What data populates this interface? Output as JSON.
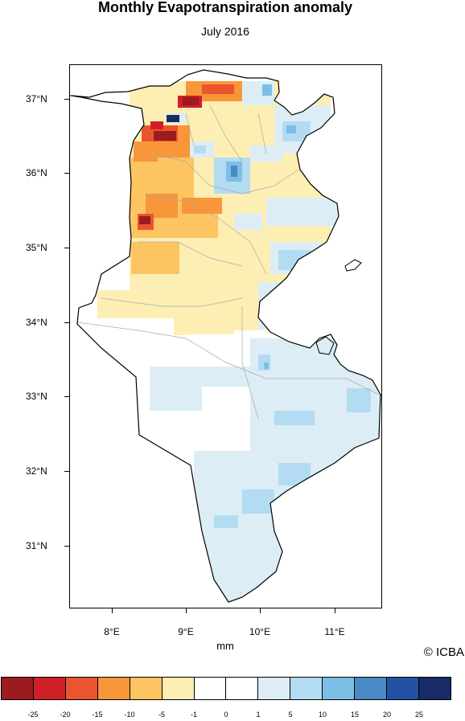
{
  "header": {
    "title": "Monthly Evapotranspiration anomaly",
    "subtitle": "July 2016"
  },
  "axes": {
    "lat_labels": [
      "37°N",
      "36°N",
      "35°N",
      "34°N",
      "33°N",
      "32°N",
      "31°N"
    ],
    "lon_labels": [
      "8°E",
      "9°E",
      "10°E",
      "11°E"
    ]
  },
  "units_label": "mm",
  "credit": "© ICBA",
  "legend": {
    "labels": [
      "-25",
      "-20",
      "-15",
      "-10",
      "-5",
      "-1",
      "0",
      "1",
      "5",
      "10",
      "15",
      "20",
      "25"
    ],
    "colors": [
      "#9b1b1e",
      "#cf2027",
      "#ea552f",
      "#f8963a",
      "#fdc562",
      "#fdeeb3",
      "#ffffff",
      "#ffffff",
      "#dcedf6",
      "#b3dcf3",
      "#7cbfe6",
      "#4989c6",
      "#2352a4",
      "#172b68"
    ]
  },
  "map_style": {
    "border_color": "#000000",
    "admin_color": "#aaaaaa"
  }
}
